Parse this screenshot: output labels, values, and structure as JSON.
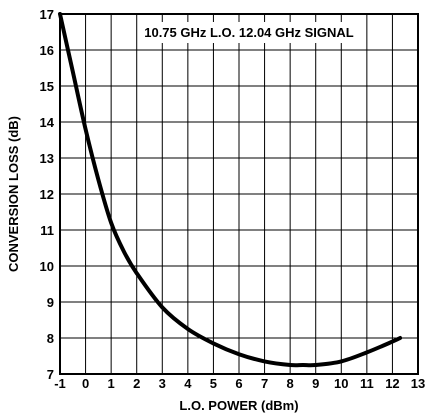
{
  "chart_data": {
    "type": "line",
    "annotation": "10.75 GHz L.O.  12.04 GHz SIGNAL",
    "xlabel": "L.O. POWER (dBm)",
    "ylabel": "CONVERSION LOSS (dB)",
    "xlim": [
      -1,
      13
    ],
    "ylim": [
      7,
      17
    ],
    "x_ticks": [
      "-1",
      "0",
      "1",
      "2",
      "3",
      "4",
      "5",
      "6",
      "7",
      "8",
      "9",
      "10",
      "11",
      "12",
      "13"
    ],
    "y_ticks": [
      "7",
      "8",
      "9",
      "10",
      "11",
      "12",
      "13",
      "14",
      "15",
      "16",
      "17"
    ],
    "grid": true,
    "series": [
      {
        "x": [
          -1,
          -0.5,
          0,
          0.5,
          1,
          1.5,
          2,
          3,
          4,
          5,
          6,
          7,
          8,
          8.5,
          9,
          10,
          11,
          12,
          12.3
        ],
        "values": [
          17.0,
          15.4,
          13.8,
          12.4,
          11.2,
          10.4,
          9.8,
          8.85,
          8.25,
          7.85,
          7.55,
          7.35,
          7.25,
          7.25,
          7.25,
          7.35,
          7.6,
          7.9,
          8.0
        ]
      }
    ]
  }
}
